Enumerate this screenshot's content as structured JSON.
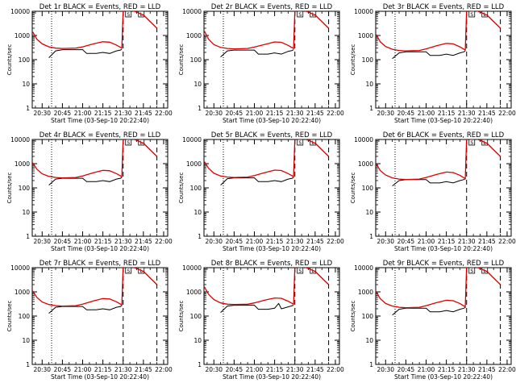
{
  "colors": {
    "events": "#000000",
    "lld": "#dd0000",
    "axes": "#000000",
    "background": "#ffffff"
  },
  "chart_data": [
    {
      "type": "line",
      "title": "Det 1r BLACK = Events, RED = LLD",
      "xlabel": "Start Time (03-Sep-10 20:22:40)",
      "ylabel": "Counts/sec",
      "yscale": "log",
      "ylim": [
        1,
        10000
      ],
      "x_ticks": [
        "20:30",
        "20:45",
        "21:00",
        "21:15",
        "21:30",
        "21:45",
        "22:00"
      ],
      "y_ticks": [
        "1",
        "10",
        "100",
        "1000",
        "10000"
      ],
      "markers": {
        "dotted_line": "20:37",
        "dashed_lines": [
          "21:30",
          "21:55"
        ],
        "box_labels": [
          "S",
          "L"
        ]
      },
      "series": [
        {
          "name": "Events",
          "x": [
            "20:35",
            "20:40",
            "20:45",
            "20:53",
            "21:00",
            "21:03",
            "21:10",
            "21:15",
            "21:20",
            "21:25",
            "21:28",
            "21:29"
          ],
          "y": [
            120,
            230,
            260,
            260,
            260,
            180,
            180,
            200,
            180,
            230,
            250,
            270
          ]
        },
        {
          "name": "LLD",
          "x": [
            "20:23",
            "20:26",
            "20:30",
            "20:35",
            "20:40",
            "20:45",
            "20:55",
            "21:00",
            "21:08",
            "21:15",
            "21:20",
            "21:25",
            "21:29",
            "21:30",
            "21:31",
            "21:35",
            "21:45",
            "21:55"
          ],
          "y": [
            1400,
            700,
            450,
            340,
            300,
            290,
            300,
            340,
            450,
            550,
            530,
            400,
            300,
            10000,
            14000,
            12000,
            7000,
            2000
          ]
        }
      ]
    },
    {
      "type": "line",
      "title": "Det 2r BLACK = Events, RED = LLD",
      "xlabel": "Start Time (03-Sep-10 20:22:40)",
      "ylabel": "Counts/sec",
      "yscale": "log",
      "ylim": [
        1,
        10000
      ],
      "x_ticks": [
        "20:30",
        "20:45",
        "21:00",
        "21:15",
        "21:30",
        "21:45",
        "22:00"
      ],
      "y_ticks": [
        "1",
        "10",
        "100",
        "1000",
        "10000"
      ],
      "markers": {
        "dotted_line": "20:37",
        "dashed_lines": [
          "21:30",
          "21:55"
        ],
        "box_labels": [
          "S",
          "L"
        ]
      },
      "series": [
        {
          "name": "Events",
          "x": [
            "20:35",
            "20:40",
            "20:45",
            "20:53",
            "21:00",
            "21:03",
            "21:10",
            "21:15",
            "21:20",
            "21:25",
            "21:28",
            "21:29"
          ],
          "y": [
            130,
            230,
            250,
            250,
            250,
            170,
            170,
            190,
            170,
            220,
            240,
            260
          ]
        },
        {
          "name": "LLD",
          "x": [
            "20:23",
            "20:26",
            "20:30",
            "20:35",
            "20:40",
            "20:45",
            "20:55",
            "21:00",
            "21:08",
            "21:15",
            "21:20",
            "21:25",
            "21:29",
            "21:30",
            "21:31",
            "21:35",
            "21:45",
            "21:55"
          ],
          "y": [
            1500,
            700,
            420,
            320,
            290,
            280,
            290,
            330,
            430,
            540,
            520,
            390,
            290,
            10000,
            14000,
            12000,
            7000,
            2000
          ]
        }
      ]
    },
    {
      "type": "line",
      "title": "Det 3r BLACK = Events, RED = LLD",
      "xlabel": "Start Time (03-Sep-10 20:22:40)",
      "ylabel": "Counts/sec",
      "yscale": "log",
      "ylim": [
        1,
        10000
      ],
      "x_ticks": [
        "20:30",
        "20:45",
        "21:00",
        "21:15",
        "21:30",
        "21:45",
        "22:00"
      ],
      "y_ticks": [
        "1",
        "10",
        "100",
        "1000",
        "10000"
      ],
      "markers": {
        "dotted_line": "20:37",
        "dashed_lines": [
          "21:30",
          "21:55"
        ],
        "box_labels": [
          "S",
          "L"
        ]
      },
      "series": [
        {
          "name": "Events",
          "x": [
            "20:35",
            "20:40",
            "20:45",
            "20:53",
            "21:00",
            "21:03",
            "21:10",
            "21:15",
            "21:20",
            "21:25",
            "21:28",
            "21:29"
          ],
          "y": [
            110,
            190,
            210,
            210,
            210,
            150,
            150,
            170,
            150,
            190,
            210,
            230
          ]
        },
        {
          "name": "LLD",
          "x": [
            "20:23",
            "20:26",
            "20:30",
            "20:35",
            "20:40",
            "20:45",
            "20:55",
            "21:00",
            "21:08",
            "21:15",
            "21:20",
            "21:25",
            "21:29",
            "21:30",
            "21:31",
            "21:35",
            "21:45",
            "21:55"
          ],
          "y": [
            1100,
            550,
            350,
            270,
            240,
            230,
            240,
            280,
            380,
            470,
            450,
            340,
            250,
            10000,
            14000,
            12000,
            7000,
            2000
          ]
        }
      ]
    },
    {
      "type": "line",
      "title": "Det 4r BLACK = Events, RED = LLD",
      "xlabel": "Start Time (03-Sep-10 20:22:40)",
      "ylabel": "Counts/sec",
      "yscale": "log",
      "ylim": [
        1,
        10000
      ],
      "x_ticks": [
        "20:30",
        "20:45",
        "21:00",
        "21:15",
        "21:30",
        "21:45",
        "22:00"
      ],
      "y_ticks": [
        "1",
        "10",
        "100",
        "1000",
        "10000"
      ],
      "markers": {
        "dotted_line": "20:37",
        "dashed_lines": [
          "21:30",
          "21:55"
        ],
        "box_labels": [
          "S",
          "L"
        ]
      },
      "series": [
        {
          "name": "Events",
          "x": [
            "20:35",
            "20:40",
            "20:45",
            "20:53",
            "21:00",
            "21:03",
            "21:10",
            "21:15",
            "21:20",
            "21:25",
            "21:28",
            "21:29"
          ],
          "y": [
            130,
            230,
            250,
            250,
            250,
            180,
            180,
            200,
            180,
            230,
            250,
            270
          ]
        },
        {
          "name": "LLD",
          "x": [
            "20:23",
            "20:26",
            "20:30",
            "20:35",
            "20:40",
            "20:45",
            "20:55",
            "21:00",
            "21:08",
            "21:15",
            "21:20",
            "21:25",
            "21:29",
            "21:30",
            "21:31",
            "21:35",
            "21:45",
            "21:55"
          ],
          "y": [
            1100,
            600,
            380,
            300,
            270,
            260,
            270,
            310,
            420,
            530,
            510,
            390,
            290,
            10000,
            14000,
            12000,
            7000,
            2000
          ]
        }
      ]
    },
    {
      "type": "line",
      "title": "Det 5r BLACK = Events, RED = LLD",
      "xlabel": "Start Time (03-Sep-10 20:22:40)",
      "ylabel": "Counts/sec",
      "yscale": "log",
      "ylim": [
        1,
        10000
      ],
      "x_ticks": [
        "20:30",
        "20:45",
        "21:00",
        "21:15",
        "21:30",
        "21:45",
        "22:00"
      ],
      "y_ticks": [
        "1",
        "10",
        "100",
        "1000",
        "10000"
      ],
      "markers": {
        "dotted_line": "20:37",
        "dashed_lines": [
          "21:30",
          "21:55"
        ],
        "box_labels": [
          "S",
          "L"
        ]
      },
      "series": [
        {
          "name": "Events",
          "x": [
            "20:35",
            "20:40",
            "20:45",
            "20:53",
            "21:00",
            "21:03",
            "21:10",
            "21:15",
            "21:20",
            "21:25",
            "21:28",
            "21:29"
          ],
          "y": [
            130,
            240,
            260,
            260,
            260,
            180,
            180,
            200,
            180,
            230,
            250,
            270
          ]
        },
        {
          "name": "LLD",
          "x": [
            "20:23",
            "20:26",
            "20:30",
            "20:35",
            "20:40",
            "20:45",
            "20:55",
            "21:00",
            "21:08",
            "21:15",
            "21:20",
            "21:25",
            "21:29",
            "21:30",
            "21:31",
            "21:35",
            "21:45",
            "21:55"
          ],
          "y": [
            1200,
            650,
            400,
            310,
            280,
            270,
            280,
            320,
            430,
            540,
            520,
            390,
            290,
            10000,
            14000,
            12000,
            7000,
            2000
          ]
        }
      ]
    },
    {
      "type": "line",
      "title": "Det 6r BLACK = Events, RED = LLD",
      "xlabel": "Start Time (03-Sep-10 20:22:40)",
      "ylabel": "Counts/sec",
      "yscale": "log",
      "ylim": [
        1,
        10000
      ],
      "x_ticks": [
        "20:30",
        "20:45",
        "21:00",
        "21:15",
        "21:30",
        "21:45",
        "22:00"
      ],
      "y_ticks": [
        "1",
        "10",
        "100",
        "1000",
        "10000"
      ],
      "markers": {
        "dotted_line": "20:37",
        "dashed_lines": [
          "21:30",
          "21:55"
        ],
        "box_labels": [
          "S",
          "L"
        ]
      },
      "series": [
        {
          "name": "Events",
          "x": [
            "20:35",
            "20:40",
            "20:45",
            "20:53",
            "21:00",
            "21:03",
            "21:10",
            "21:15",
            "21:20",
            "21:25",
            "21:28",
            "21:29"
          ],
          "y": [
            120,
            200,
            220,
            220,
            220,
            160,
            160,
            180,
            160,
            200,
            220,
            240
          ]
        },
        {
          "name": "LLD",
          "x": [
            "20:23",
            "20:26",
            "20:30",
            "20:35",
            "20:40",
            "20:45",
            "20:55",
            "21:00",
            "21:08",
            "21:15",
            "21:20",
            "21:25",
            "21:29",
            "21:30",
            "21:31",
            "21:35",
            "21:45",
            "21:55"
          ],
          "y": [
            1000,
            520,
            340,
            260,
            230,
            220,
            230,
            270,
            360,
            450,
            430,
            330,
            240,
            10000,
            14000,
            12000,
            7000,
            2000
          ]
        }
      ]
    },
    {
      "type": "line",
      "title": "Det 7r BLACK = Events, RED = LLD",
      "xlabel": "Start Time (03-Sep-10 20:22:40)",
      "ylabel": "Counts/sec",
      "yscale": "log",
      "ylim": [
        1,
        10000
      ],
      "x_ticks": [
        "20:30",
        "20:45",
        "21:00",
        "21:15",
        "21:30",
        "21:45",
        "22:00"
      ],
      "y_ticks": [
        "1",
        "10",
        "100",
        "1000",
        "10000"
      ],
      "markers": {
        "dotted_line": "20:37",
        "dashed_lines": [
          "21:30",
          "21:55"
        ],
        "box_labels": [
          "S",
          "L"
        ]
      },
      "series": [
        {
          "name": "Events",
          "x": [
            "20:35",
            "20:40",
            "20:45",
            "20:53",
            "21:00",
            "21:03",
            "21:10",
            "21:15",
            "21:20",
            "21:25",
            "21:28",
            "21:29"
          ],
          "y": [
            130,
            230,
            250,
            250,
            250,
            180,
            180,
            200,
            180,
            230,
            250,
            270
          ]
        },
        {
          "name": "LLD",
          "x": [
            "20:23",
            "20:26",
            "20:30",
            "20:35",
            "20:40",
            "20:45",
            "20:55",
            "21:00",
            "21:08",
            "21:15",
            "21:20",
            "21:25",
            "21:29",
            "21:30",
            "21:31",
            "21:35",
            "21:45",
            "21:55"
          ],
          "y": [
            1100,
            600,
            380,
            300,
            270,
            260,
            270,
            310,
            420,
            530,
            510,
            390,
            290,
            10000,
            14000,
            12000,
            7000,
            2000
          ]
        }
      ]
    },
    {
      "type": "line",
      "title": "Det 8r BLACK = Events, RED = LLD",
      "xlabel": "Start Time (03-Sep-10 20:22:40)",
      "ylabel": "Counts/sec",
      "yscale": "log",
      "ylim": [
        1,
        10000
      ],
      "x_ticks": [
        "20:30",
        "20:45",
        "21:00",
        "21:15",
        "21:30",
        "21:45",
        "22:00"
      ],
      "y_ticks": [
        "1",
        "10",
        "100",
        "1000",
        "10000"
      ],
      "markers": {
        "dotted_line": "20:37",
        "dashed_lines": [
          "21:30",
          "21:55"
        ],
        "box_labels": [
          "S",
          "L"
        ]
      },
      "series": [
        {
          "name": "Events",
          "x": [
            "20:35",
            "20:40",
            "20:45",
            "20:53",
            "21:00",
            "21:03",
            "21:10",
            "21:15",
            "21:18",
            "21:20",
            "21:25",
            "21:29"
          ],
          "y": [
            140,
            260,
            280,
            280,
            280,
            190,
            190,
            210,
            330,
            200,
            240,
            280
          ]
        },
        {
          "name": "LLD",
          "x": [
            "20:23",
            "20:26",
            "20:30",
            "20:35",
            "20:40",
            "20:45",
            "20:55",
            "21:00",
            "21:08",
            "21:15",
            "21:20",
            "21:25",
            "21:29",
            "21:30",
            "21:31",
            "21:35",
            "21:45",
            "21:55"
          ],
          "y": [
            1600,
            800,
            480,
            350,
            310,
            300,
            310,
            350,
            460,
            560,
            540,
            410,
            310,
            10000,
            14000,
            12000,
            7000,
            2000
          ]
        }
      ]
    },
    {
      "type": "line",
      "title": "Det 9r BLACK = Events, RED = LLD",
      "xlabel": "Start Time (03-Sep-10 20:22:40)",
      "ylabel": "Counts/sec",
      "yscale": "log",
      "ylim": [
        1,
        10000
      ],
      "x_ticks": [
        "20:30",
        "20:45",
        "21:00",
        "21:15",
        "21:30",
        "21:45",
        "22:00"
      ],
      "y_ticks": [
        "1",
        "10",
        "100",
        "1000",
        "10000"
      ],
      "markers": {
        "dotted_line": "20:37",
        "dashed_lines": [
          "21:30",
          "21:55"
        ],
        "box_labels": [
          "S",
          "L"
        ]
      },
      "series": [
        {
          "name": "Events",
          "x": [
            "20:35",
            "20:40",
            "20:45",
            "20:53",
            "21:00",
            "21:03",
            "21:10",
            "21:15",
            "21:20",
            "21:25",
            "21:28",
            "21:29"
          ],
          "y": [
            110,
            190,
            210,
            210,
            210,
            150,
            150,
            170,
            150,
            190,
            210,
            230
          ]
        },
        {
          "name": "LLD",
          "x": [
            "20:23",
            "20:26",
            "20:30",
            "20:35",
            "20:40",
            "20:45",
            "20:55",
            "21:00",
            "21:08",
            "21:15",
            "21:20",
            "21:25",
            "21:29",
            "21:30",
            "21:31",
            "21:35",
            "21:45",
            "21:55"
          ],
          "y": [
            1000,
            520,
            330,
            260,
            230,
            220,
            230,
            270,
            360,
            450,
            430,
            330,
            240,
            10000,
            14000,
            12000,
            7000,
            2000
          ]
        }
      ]
    }
  ]
}
